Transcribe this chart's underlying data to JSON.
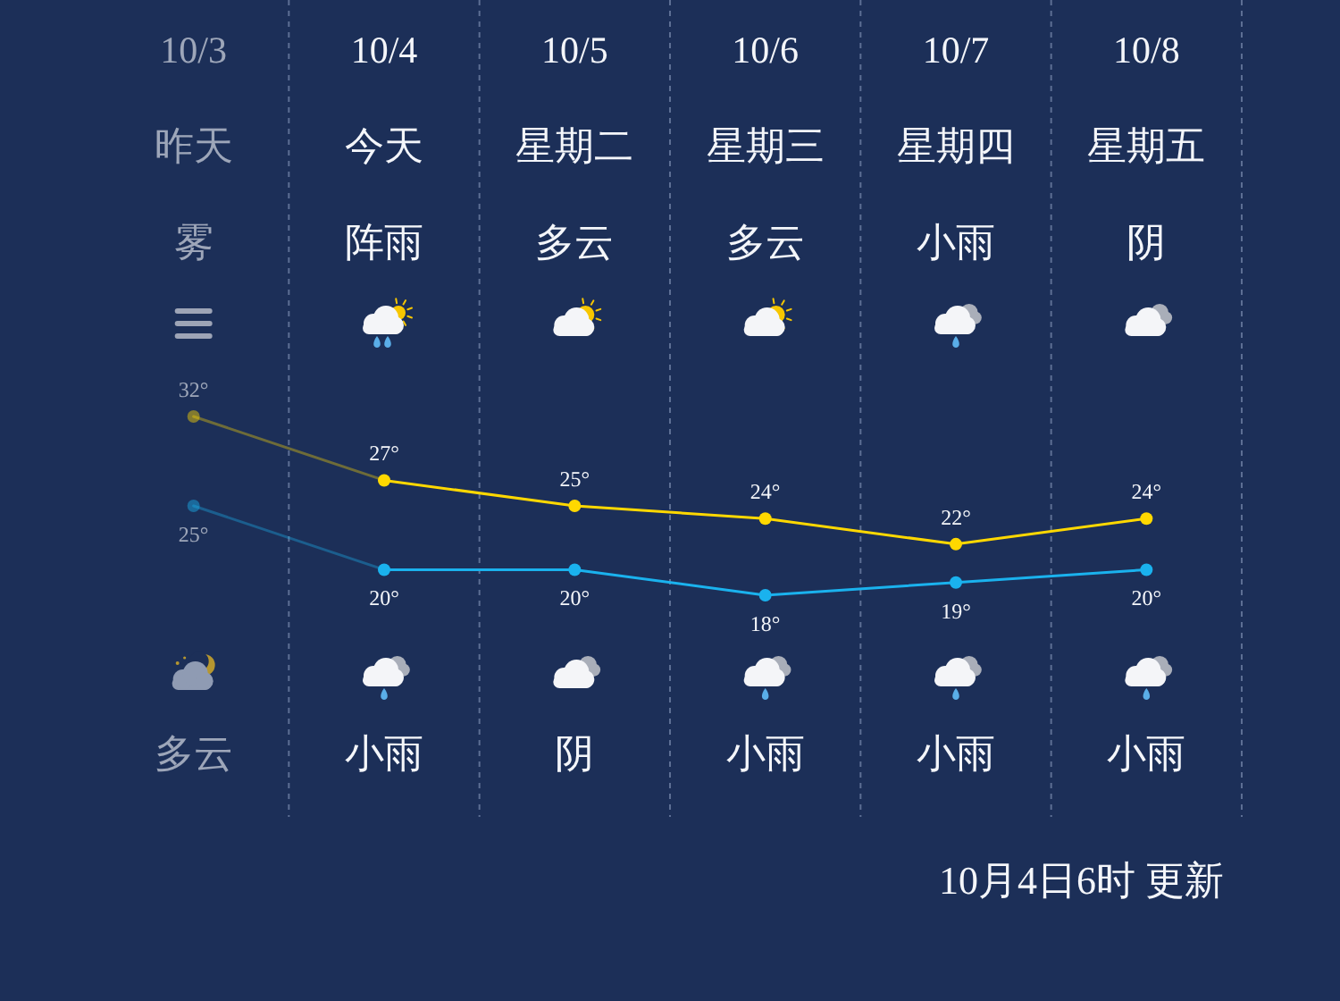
{
  "chart_data": {
    "type": "line",
    "categories": [
      "10/3",
      "10/4",
      "10/5",
      "10/6",
      "10/7",
      "10/8"
    ],
    "series": [
      {
        "color": "#ffd800",
        "values": [
          32,
          27,
          25,
          24,
          22,
          24
        ],
        "value_labels": [
          "32°",
          "27°",
          "25°",
          "24°",
          "22°",
          "24°"
        ]
      },
      {
        "color": "#1ab2ee",
        "values": [
          25,
          20,
          20,
          18,
          19,
          20
        ],
        "value_labels": [
          "25°",
          "20°",
          "20°",
          "18°",
          "19°",
          "20°"
        ]
      }
    ],
    "annotations": [
      "昨天",
      "今天",
      "星期二",
      "星期三",
      "星期四",
      "星期五",
      "雾",
      "阵雨",
      "多云",
      "多云",
      "小雨",
      "阴",
      "多云",
      "小雨",
      "阴",
      "小雨",
      "小雨",
      "小雨",
      "10月4日6时 更新"
    ],
    "grid": "x",
    "marker": "circle",
    "line_style": "solid",
    "tick_labels": "x"
  }
}
